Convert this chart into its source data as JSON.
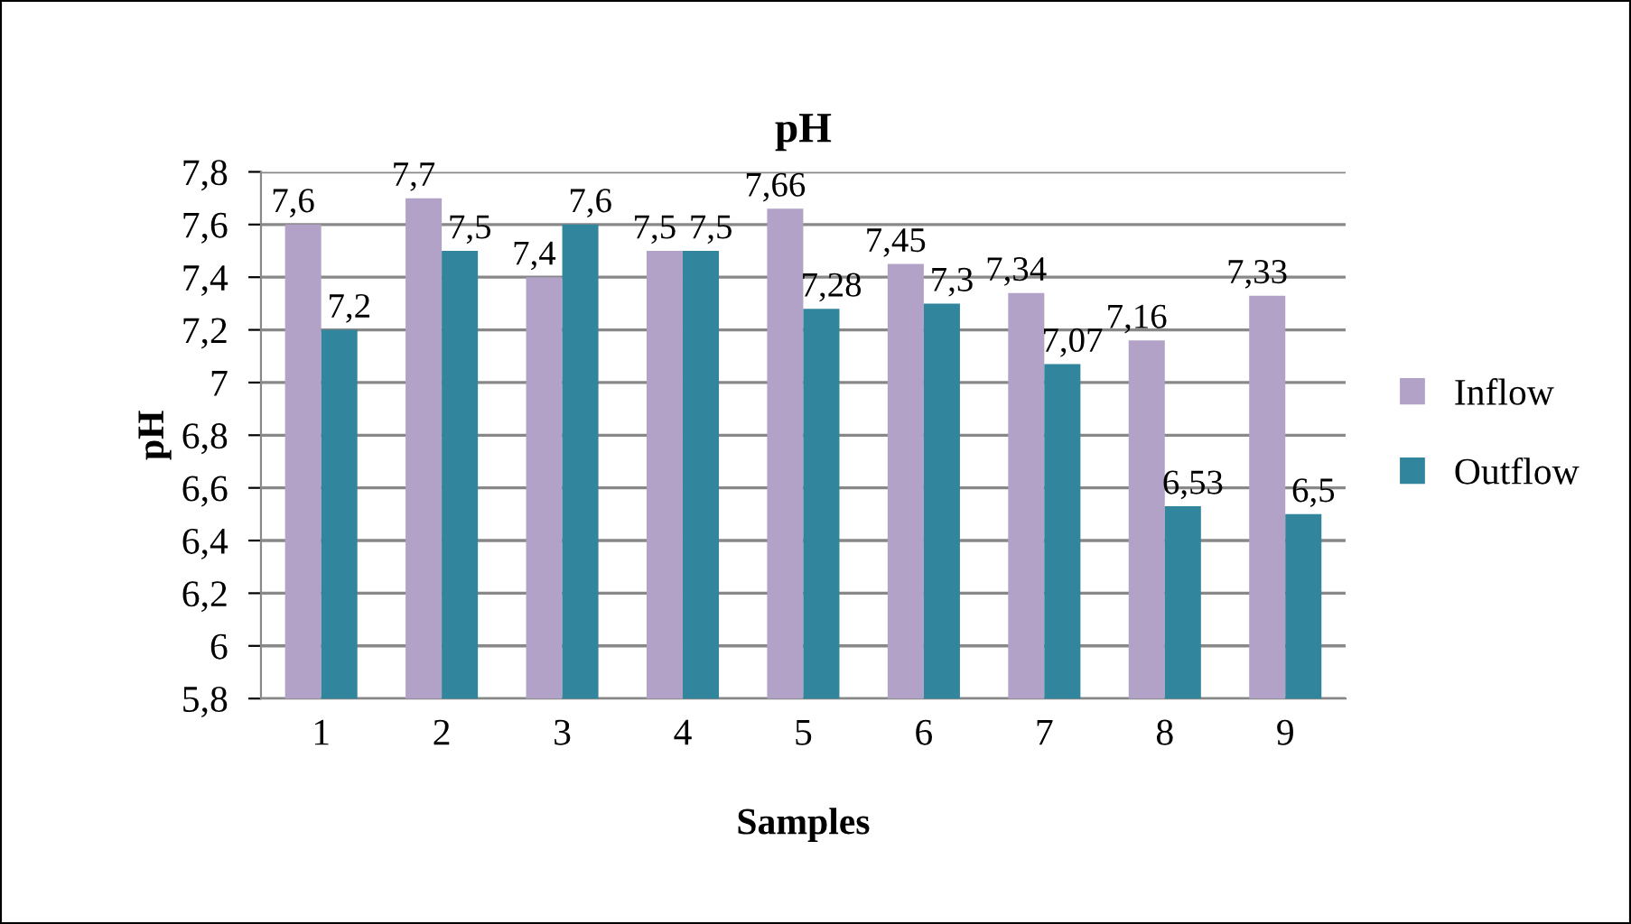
{
  "chart_data": {
    "type": "bar",
    "title": "pH",
    "xlabel": "Samples",
    "ylabel": "pH",
    "categories": [
      "1",
      "2",
      "3",
      "4",
      "5",
      "6",
      "7",
      "8",
      "9"
    ],
    "series": [
      {
        "name": "Inflow",
        "color": "#b3a2c7",
        "values": [
          7.6,
          7.7,
          7.4,
          7.5,
          7.66,
          7.45,
          7.34,
          7.16,
          7.33
        ],
        "value_labels": [
          "7,6",
          "7,7",
          "7,4",
          "7,5",
          "7,66",
          "7,45",
          "7,34",
          "7,16",
          "7,33"
        ]
      },
      {
        "name": "Outflow",
        "color": "#31859c",
        "values": [
          7.2,
          7.5,
          7.6,
          7.5,
          7.28,
          7.3,
          7.07,
          6.53,
          6.5
        ],
        "value_labels": [
          "7,2",
          "7,5",
          "7,6",
          "7,5",
          "7,28",
          "7,3",
          "7,07",
          "6,53",
          "6,5"
        ]
      }
    ],
    "ylim": [
      5.8,
      7.8
    ],
    "yticks": [
      {
        "value": 5.8,
        "label": "5,8"
      },
      6,
      {
        "value": 6.2,
        "label": "6,2"
      },
      {
        "value": 6.4,
        "label": "6,4"
      },
      {
        "value": 6.6,
        "label": "6,6"
      },
      {
        "value": 6.8,
        "label": "6,8"
      },
      7,
      {
        "value": 7.2,
        "label": "7,2"
      },
      {
        "value": 7.4,
        "label": "7,4"
      },
      {
        "value": 7.6,
        "label": "7,6"
      },
      {
        "value": 7.8,
        "label": "7,8"
      }
    ],
    "grid": "y",
    "legend": "right"
  }
}
